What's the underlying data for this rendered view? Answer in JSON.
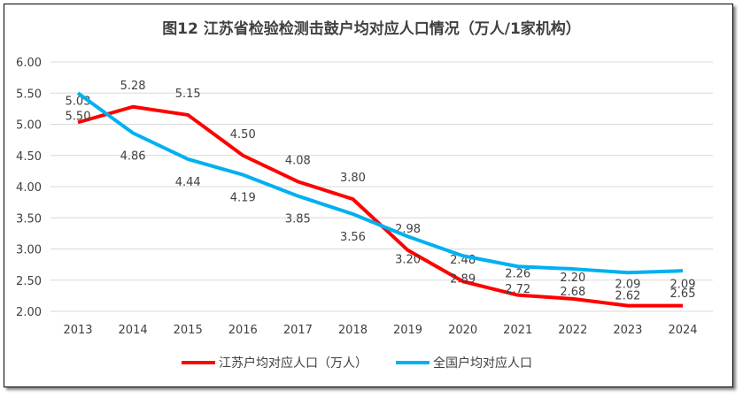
{
  "chart_data": {
    "type": "line",
    "title": "图12  江苏省检验检测击鼓户均对应人口情况（万人/1家机构）",
    "categories": [
      "2013",
      "2014",
      "2015",
      "2016",
      "2017",
      "2018",
      "2019",
      "2020",
      "2021",
      "2022",
      "2023",
      "2024"
    ],
    "ylim": [
      2.0,
      6.0
    ],
    "yticks": [
      "2.00",
      "2.50",
      "3.00",
      "3.50",
      "4.00",
      "4.50",
      "5.00",
      "5.50",
      "6.00"
    ],
    "grid": true,
    "legend": "bottom",
    "series": [
      {
        "name": "江苏户均对应人口（万人）",
        "color": "#ff0000",
        "values": [
          5.03,
          5.28,
          5.15,
          4.5,
          4.08,
          3.8,
          2.98,
          2.48,
          2.26,
          2.2,
          2.09,
          2.09
        ]
      },
      {
        "name": "全国户均对应人口",
        "color": "#00b0f0",
        "values": [
          5.5,
          4.86,
          4.44,
          4.19,
          3.85,
          3.56,
          3.2,
          2.89,
          2.72,
          2.68,
          2.62,
          2.65
        ]
      }
    ]
  }
}
